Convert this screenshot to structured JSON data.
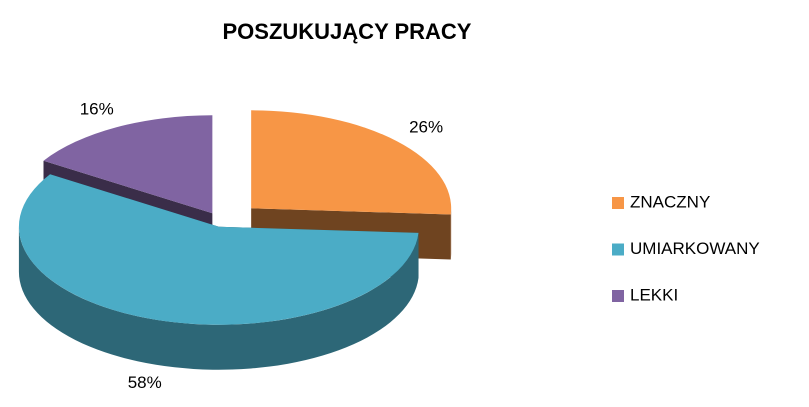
{
  "chart_data": {
    "type": "pie3d",
    "title": "POSZUKUJĄCY PRACY",
    "categories": [
      "ZNACZNY",
      "UMIARKOWANY",
      "LEKKI"
    ],
    "values": [
      26,
      58,
      16
    ],
    "value_labels": [
      "26%",
      "58%",
      "16%"
    ],
    "colors": [
      "#f79646",
      "#4bacc6",
      "#8064a2"
    ],
    "legend": "right"
  }
}
